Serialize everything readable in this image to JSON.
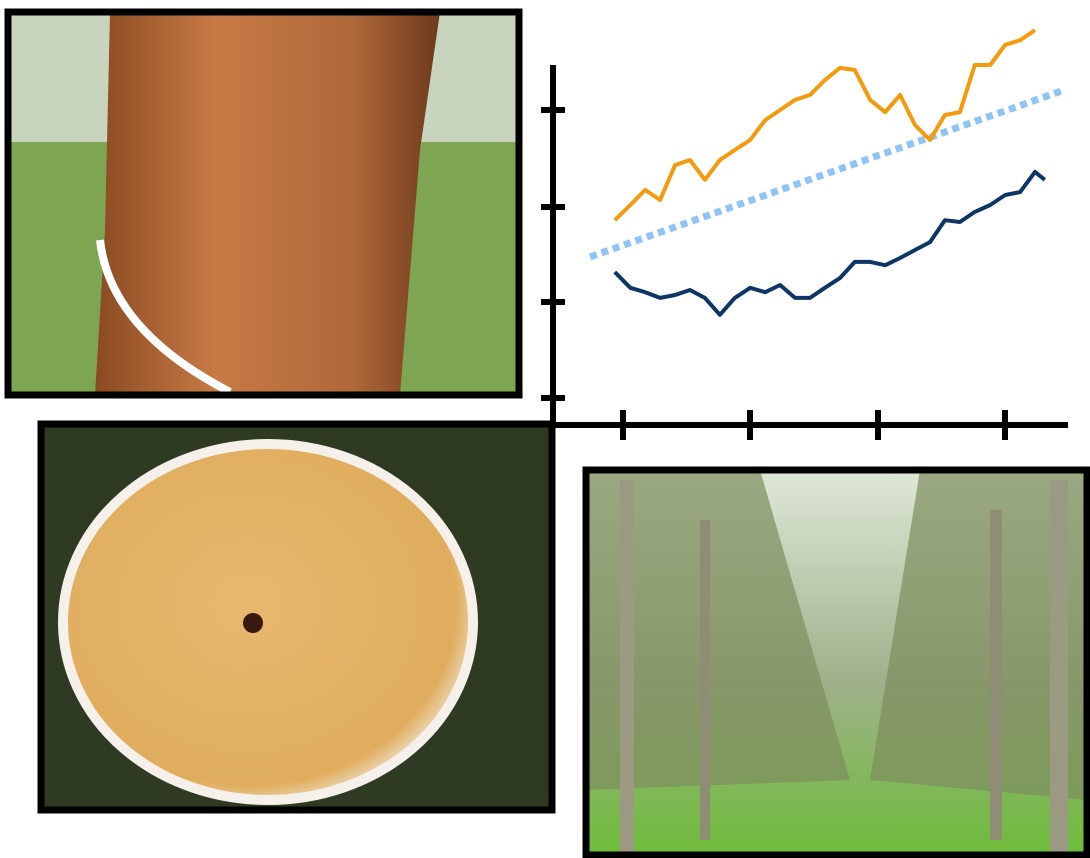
{
  "chart_data": {
    "type": "line",
    "xlim": [
      0,
      100
    ],
    "ylim": [
      0,
      110
    ],
    "x": [
      12.0,
      15.0,
      17.9,
      20.8,
      23.7,
      26.6,
      29.5,
      32.4,
      35.3,
      38.3,
      41.2,
      44.1,
      47.0,
      49.9,
      52.8,
      55.7,
      58.6,
      61.6,
      64.5,
      67.4,
      70.3,
      73.2,
      76.1,
      79.0,
      81.9,
      84.9,
      87.8,
      90.7,
      93.6,
      95.5
    ],
    "series": [
      {
        "color": "#f59a0c",
        "values": [
          56.9,
          61.1,
          65.3,
          62.5,
          72.2,
          73.6,
          68.1,
          73.6,
          76.4,
          79.2,
          84.7,
          87.5,
          90.3,
          91.7,
          95.8,
          99.2,
          98.6,
          90.3,
          86.9,
          91.7,
          83.3,
          79.2,
          86.1,
          86.9,
          100,
          100,
          105.6,
          106.9,
          109.7,
          null
        ]
      },
      {
        "color": "#0d3565",
        "values": [
          42.5,
          38.1,
          36.9,
          35.3,
          36.1,
          37.5,
          35.3,
          30.6,
          35.3,
          38.1,
          36.9,
          38.9,
          35.3,
          35.3,
          38.1,
          40.8,
          45.3,
          45.3,
          44.4,
          46.4,
          48.6,
          50.8,
          56.9,
          56.4,
          59.2,
          61.1,
          63.9,
          64.7,
          70.3,
          68.1
        ]
      }
    ],
    "trend": {
      "color": "#8fc4f4",
      "x": [
        7.2,
        99.4
      ],
      "values": [
        46.7,
        93.1
      ]
    }
  }
}
